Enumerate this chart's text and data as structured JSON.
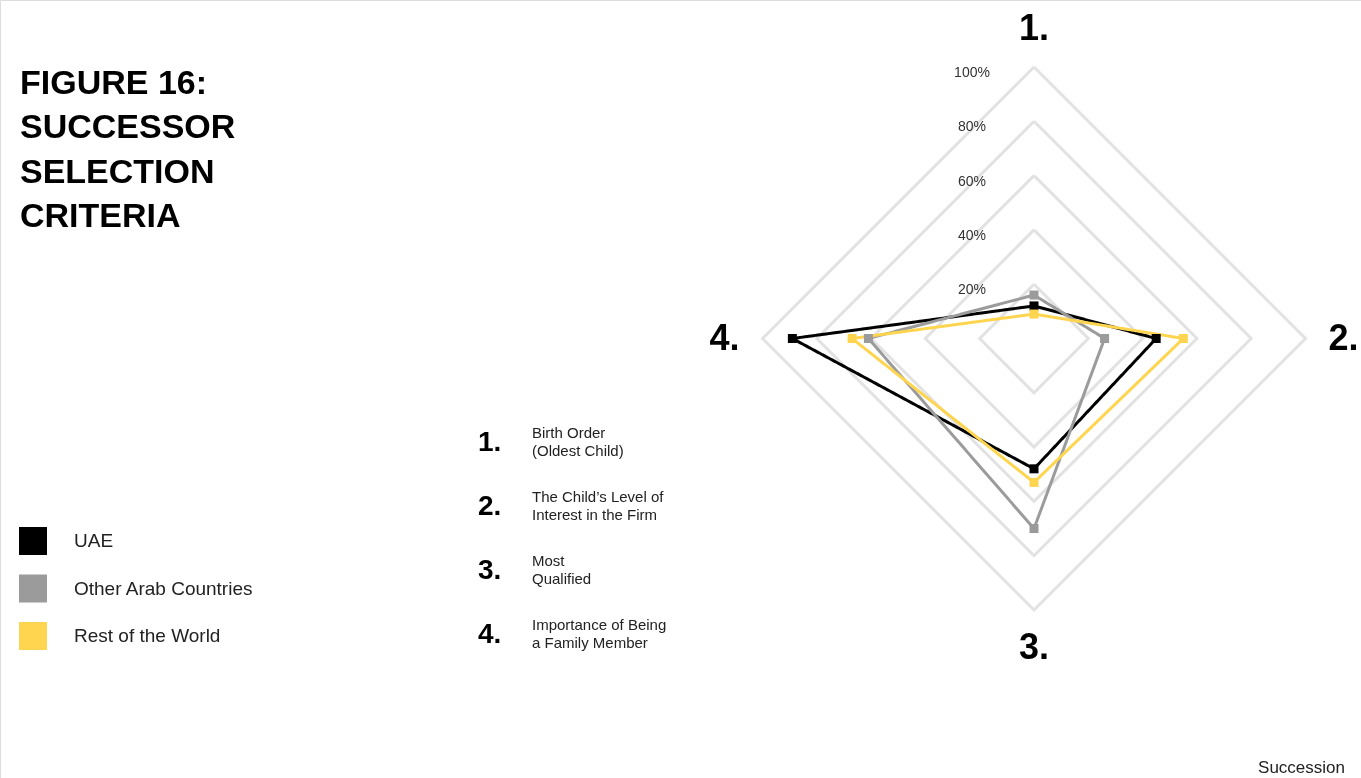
{
  "chart_data": {
    "type": "radar",
    "title": "FIGURE 16: SUCCESSOR SELECTION CRITERIA",
    "categories": [
      "1.",
      "2.",
      "3.",
      "4."
    ],
    "series": [
      {
        "name": "UAE",
        "color": "#000000",
        "values": [
          12,
          45,
          48,
          89
        ]
      },
      {
        "name": "Other Arab Countries",
        "color": "#9b9b9b",
        "values": [
          16,
          26,
          70,
          61
        ]
      },
      {
        "name": "Rest of the World",
        "color": "#ffd54f",
        "values": [
          9,
          55,
          53,
          67
        ]
      }
    ],
    "ylim": [
      0,
      100
    ],
    "yticks": [
      {
        "value": 20,
        "label": "20%"
      },
      {
        "value": 40,
        "label": "40%"
      },
      {
        "value": 60,
        "label": "60%"
      },
      {
        "value": 80,
        "label": "80%"
      },
      {
        "value": 100,
        "label": "100%"
      }
    ],
    "grid": true,
    "legend": "left",
    "marker": "square",
    "line_style": "solid",
    "annotations": [
      "Birth Order\n(Oldest Child)",
      "The Child’s Level of\nInterest in the Firm",
      "Most\nQualified",
      "Importance of Being\na Family Member",
      "Succession"
    ]
  }
}
